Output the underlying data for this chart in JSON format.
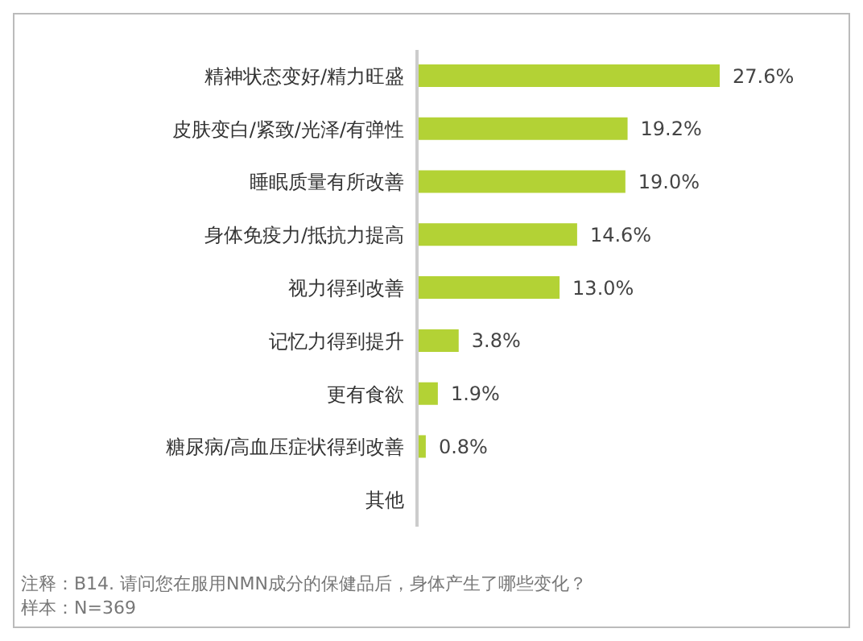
{
  "chart_data": {
    "type": "bar",
    "orientation": "horizontal",
    "categories": [
      "精神状态变好/精力旺盛",
      "皮肤变白/紧致/光泽/有弹性",
      "睡眠质量有所改善",
      "身体免疫力/抵抗力提高",
      "视力得到改善",
      "记忆力得到提升",
      "更有食欲",
      "糖尿病/高血压症状得到改善",
      "其他"
    ],
    "values": [
      27.6,
      19.2,
      19.0,
      14.6,
      13.0,
      3.8,
      1.9,
      0.8,
      null
    ],
    "value_labels": [
      "27.6%",
      "19.2%",
      "19.0%",
      "14.6%",
      "13.0%",
      "3.8%",
      "1.9%",
      "0.8%",
      null
    ],
    "color": "#b3d235",
    "tick_labels": "y",
    "annotations": [
      "注释：B14. 请问您在服用NMN成分的保健品后，身体产生了哪些变化？",
      "样本：N=369"
    ]
  }
}
